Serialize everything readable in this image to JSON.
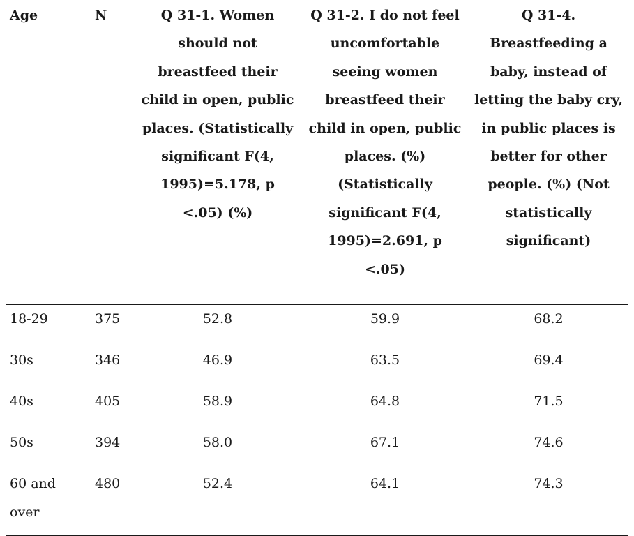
{
  "table": {
    "headers": {
      "age": "Age",
      "n": "N",
      "q1": "Q 31-1. Women should not breastfeed their child in open, public places. (Statistically significant F(4, 1995)=5.178, p <.05) (%)",
      "q2": "Q 31-2. I do not feel uncomfortable seeing women breastfeed their child in open, public places. (%) (Statistically significant F(4, 1995)=2.691, p <.05)",
      "q4": "Q 31-4. Breastfeeding a baby, instead of letting the baby cry, in public places is better for other people. (%) (Not statistically significant)"
    },
    "rows": [
      {
        "age": "18-29",
        "n": "375",
        "q1": "52.8",
        "q2": "59.9",
        "q4": "68.2"
      },
      {
        "age": "30s",
        "n": "346",
        "q1": "46.9",
        "q2": "63.5",
        "q4": "69.4"
      },
      {
        "age": "40s",
        "n": "405",
        "q1": "58.9",
        "q2": "64.8",
        "q4": "71.5"
      },
      {
        "age": "50s",
        "n": "394",
        "q1": "58.0",
        "q2": "67.1",
        "q4": "74.6"
      },
      {
        "age": "60 and over",
        "n": "480",
        "q1": "52.4",
        "q2": "64.1",
        "q4": "74.3"
      }
    ]
  }
}
